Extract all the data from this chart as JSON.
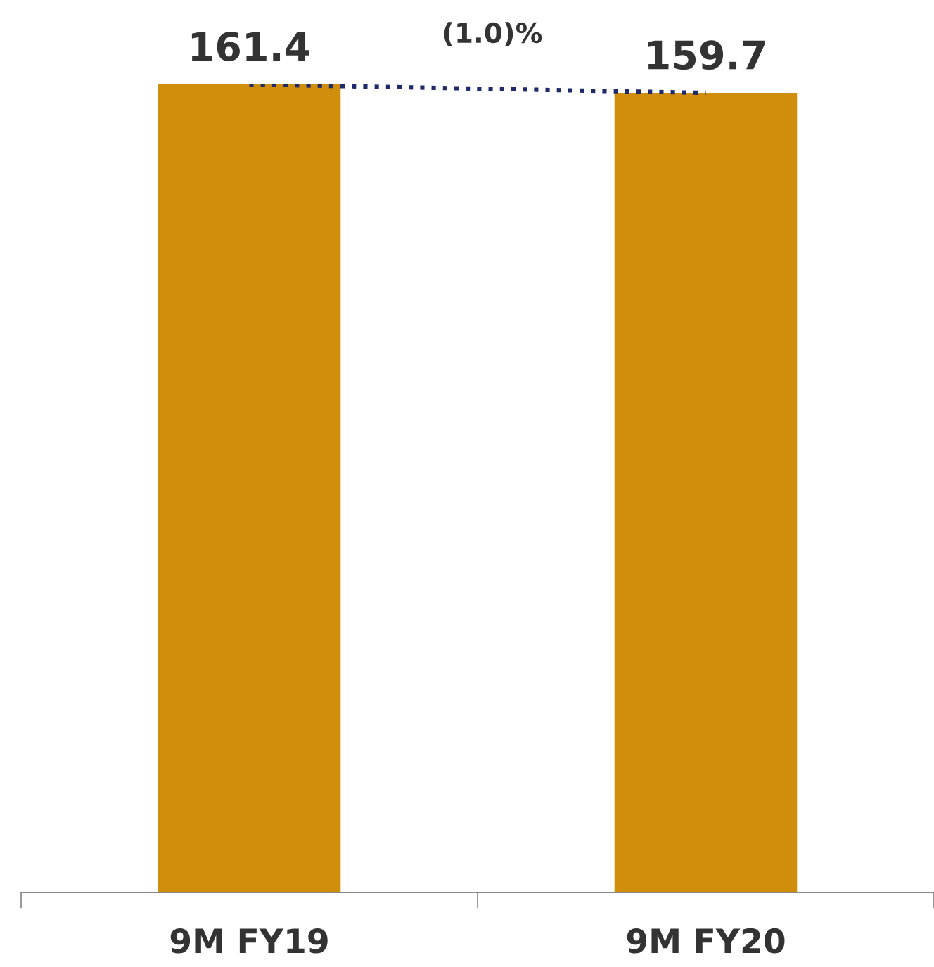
{
  "chart_data": {
    "type": "bar",
    "categories": [
      "9M FY19",
      "9M FY20"
    ],
    "series": [
      {
        "color": "#d08e0c",
        "values": [
          161.4,
          159.7
        ],
        "value_labels": [
          "161.4",
          "159.7"
        ]
      },
      {
        "type": "line",
        "color": "#1f2a6b",
        "values": [
          161.4,
          159.7
        ],
        "line_style": "dotted",
        "marker": "none"
      }
    ],
    "grid": false,
    "legend": false,
    "annotations": [
      "(1.0)%"
    ]
  }
}
